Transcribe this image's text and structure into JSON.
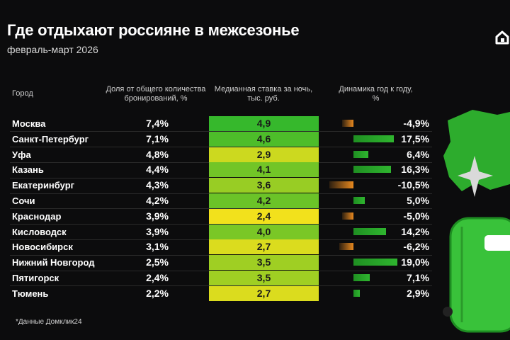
{
  "title": "Где отдыхают россияне в межсезонье",
  "subtitle": "февраль-март 2026",
  "headers": {
    "city": "Город",
    "share_line1": "Доля от общего количества",
    "share_line2": "бронирований, %",
    "rate_line1": "Медианная ставка за ночь,",
    "rate_line2": "тыс. руб.",
    "dyn_line1": "Динамика год к году,",
    "dyn_line2": "%"
  },
  "footnote": "*Данные Домклик24",
  "colors": {
    "background": "#0c0c0d",
    "positive": "#2fb52f",
    "negative": "#e8891f",
    "rate_high": "#36b82c",
    "rate_low": "#f2e11c"
  },
  "chart_data": {
    "type": "table",
    "title": "Где отдыхают россияне в межсезонье",
    "subtitle": "февраль-март 2026",
    "columns": [
      "Город",
      "Доля от общего количества бронирований, %",
      "Медианная ставка за ночь, тыс. руб.",
      "Динамика год к году, %"
    ],
    "rows": [
      {
        "city": "Москва",
        "share": "7,4%",
        "rate": "4,9",
        "rate_value": 4.9,
        "dyn": "-4,9%",
        "dyn_value": -4.9
      },
      {
        "city": "Санкт-Петербург",
        "share": "7,1%",
        "rate": "4,6",
        "rate_value": 4.6,
        "dyn": "17,5%",
        "dyn_value": 17.5
      },
      {
        "city": "Уфа",
        "share": "4,8%",
        "rate": "2,9",
        "rate_value": 2.9,
        "dyn": "6,4%",
        "dyn_value": 6.4
      },
      {
        "city": "Казань",
        "share": "4,4%",
        "rate": "4,1",
        "rate_value": 4.1,
        "dyn": "16,3%",
        "dyn_value": 16.3
      },
      {
        "city": "Екатеринбург",
        "share": "4,3%",
        "rate": "3,6",
        "rate_value": 3.6,
        "dyn": "-10,5%",
        "dyn_value": -10.5
      },
      {
        "city": "Сочи",
        "share": "4,2%",
        "rate": "4,2",
        "rate_value": 4.2,
        "dyn": "5,0%",
        "dyn_value": 5.0
      },
      {
        "city": "Краснодар",
        "share": "3,9%",
        "rate": "2,4",
        "rate_value": 2.4,
        "dyn": "-5,0%",
        "dyn_value": -5.0
      },
      {
        "city": "Кисловодск",
        "share": "3,9%",
        "rate": "4,0",
        "rate_value": 4.0,
        "dyn": "14,2%",
        "dyn_value": 14.2
      },
      {
        "city": "Новосибирск",
        "share": "3,1%",
        "rate": "2,7",
        "rate_value": 2.7,
        "dyn": "-6,2%",
        "dyn_value": -6.2
      },
      {
        "city": "Нижний Новгород",
        "share": "2,5%",
        "rate": "3,5",
        "rate_value": 3.5,
        "dyn": "19,0%",
        "dyn_value": 19.0
      },
      {
        "city": "Пятигорск",
        "share": "2,4%",
        "rate": "3,5",
        "rate_value": 3.5,
        "dyn": "7,1%",
        "dyn_value": 7.1
      },
      {
        "city": "Тюмень",
        "share": "2,2%",
        "rate": "2,7",
        "rate_value": 2.7,
        "dyn": "2,9%",
        "dyn_value": 2.9
      }
    ]
  }
}
